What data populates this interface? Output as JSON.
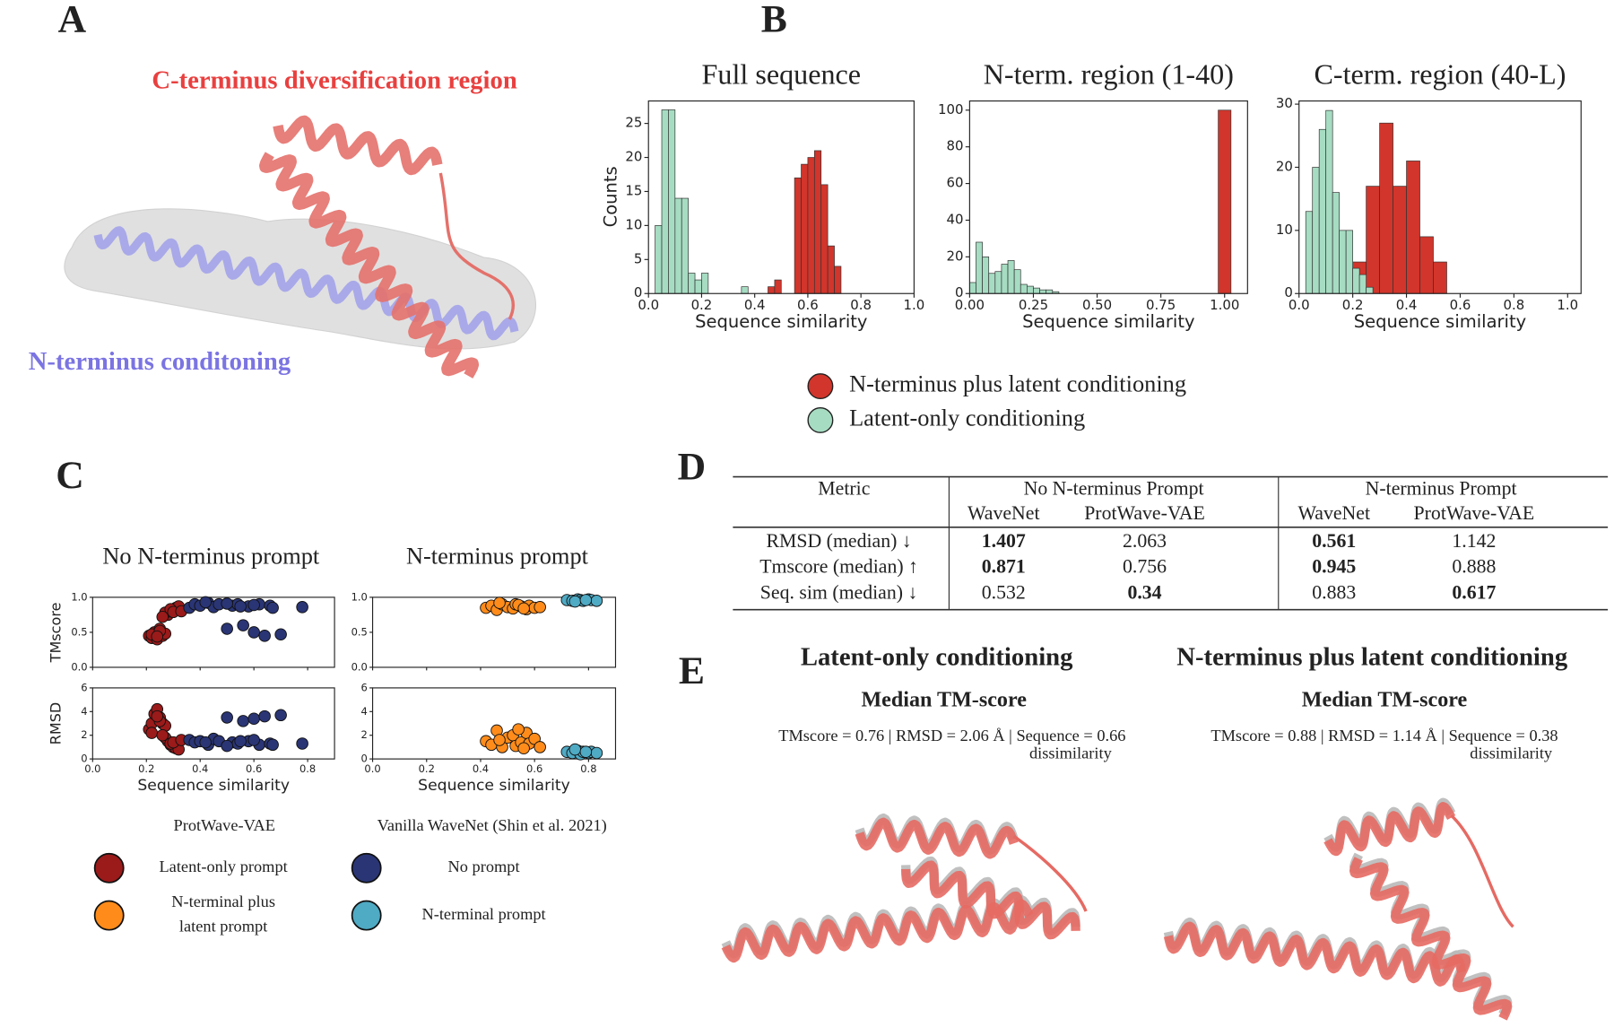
{
  "panel_labels": [
    "A",
    "B",
    "C",
    "D",
    "E"
  ],
  "panel_a": {
    "c_terminus_label": "C-terminus diversification region",
    "n_terminus_label": "N-terminus conditoning"
  },
  "chart_data": [
    {
      "type": "histogram",
      "title": "Full sequence",
      "xlabel": "Sequence similarity",
      "ylabel": "Counts",
      "xlim": [
        0,
        1.0
      ],
      "ylim": [
        0,
        28.3
      ],
      "xticks": [
        {
          "value": 0,
          "label": "0.0"
        },
        {
          "value": 0.2,
          "label": "0.2"
        },
        {
          "value": 0.4,
          "label": "0.4"
        },
        {
          "value": 0.6,
          "label": "0.6"
        },
        {
          "value": 0.8,
          "label": "0.8"
        },
        {
          "value": 1,
          "label": "1.0"
        }
      ],
      "yticks": [
        0,
        5,
        10,
        15,
        20,
        25
      ],
      "series": [
        {
          "color": "#a6dcc2",
          "bins": [
            0.025,
            0.05,
            0.075,
            0.1,
            0.125,
            0.15,
            0.175,
            0.2,
            0.225,
            0.25,
            0.275,
            0.3,
            0.325,
            0.35,
            0.375
          ],
          "values": [
            10,
            27,
            27,
            14,
            14,
            3,
            2,
            3,
            0,
            0,
            0,
            0,
            0,
            1
          ]
        },
        {
          "color": "#d1352b",
          "bins": [
            0.45,
            0.475,
            0.5,
            0.525,
            0.55,
            0.575,
            0.6,
            0.625,
            0.65,
            0.675,
            0.7,
            0.725
          ],
          "values": [
            1,
            2,
            0,
            0,
            17,
            19,
            20,
            21,
            16,
            7,
            4
          ]
        }
      ]
    },
    {
      "type": "histogram",
      "title": "N-term. region (1-40)",
      "xlabel": "Sequence similarity",
      "xlim": [
        0,
        1.09
      ],
      "ylim": [
        0,
        105
      ],
      "xticks": [
        {
          "value": 0,
          "label": "0.00"
        },
        {
          "value": 0.25,
          "label": "0.25"
        },
        {
          "value": 0.5,
          "label": "0.50"
        },
        {
          "value": 0.75,
          "label": "0.75"
        },
        {
          "value": 1,
          "label": "1.00"
        }
      ],
      "yticks": [
        0,
        20,
        40,
        60,
        80,
        100
      ],
      "series": [
        {
          "color": "#a6dcc2",
          "bins": [
            0,
            0.025,
            0.05,
            0.075,
            0.1,
            0.125,
            0.15,
            0.175,
            0.2,
            0.225,
            0.25,
            0.275,
            0.3,
            0.325,
            0.35
          ],
          "values": [
            6,
            28,
            20,
            11,
            12,
            16,
            18,
            13,
            5,
            4,
            3,
            2,
            2,
            1
          ]
        },
        {
          "color": "#d1352b",
          "bins": [
            0.975,
            1.025
          ],
          "values": [
            100
          ]
        }
      ]
    },
    {
      "type": "histogram",
      "title": "C-term. region (40-L)",
      "xlabel": "Sequence similarity",
      "xlim": [
        0,
        1.05
      ],
      "ylim": [
        0,
        30.5
      ],
      "xticks": [
        {
          "value": 0,
          "label": "0.0"
        },
        {
          "value": 0.2,
          "label": "0.2"
        },
        {
          "value": 0.4,
          "label": "0.4"
        },
        {
          "value": 0.6,
          "label": "0.6"
        },
        {
          "value": 0.8,
          "label": "0.8"
        },
        {
          "value": 1,
          "label": "1.0"
        }
      ],
      "yticks": [
        0,
        10,
        20,
        30
      ],
      "series": [
        {
          "color": "#d1352b",
          "bins": [
            0.2,
            0.25,
            0.3,
            0.35,
            0.4,
            0.45,
            0.5,
            0.55
          ],
          "values": [
            5,
            17,
            27,
            17,
            21,
            9,
            5
          ]
        },
        {
          "color": "#a6dcc2",
          "bins": [
            0.025,
            0.05,
            0.075,
            0.1,
            0.125,
            0.15,
            0.175,
            0.2,
            0.225,
            0.25,
            0.275
          ],
          "values": [
            13,
            20,
            26,
            29,
            16,
            10,
            10,
            4,
            3,
            1
          ]
        }
      ]
    },
    {
      "type": "scatter",
      "title": "No N-terminus prompt",
      "xlabel": "Sequence similarity",
      "xlim": [
        0,
        0.9
      ],
      "xticks": [
        {
          "value": 0,
          "label": "0.0"
        },
        {
          "value": 0.2,
          "label": "0.2"
        },
        {
          "value": 0.4,
          "label": "0.4"
        },
        {
          "value": 0.6,
          "label": "0.6"
        },
        {
          "value": 0.8,
          "label": "0.8"
        }
      ],
      "series_x": [
        [
          0.21,
          0.22,
          0.23,
          0.24,
          0.25,
          0.26,
          0.27,
          0.28,
          0.29,
          0.3,
          0.31,
          0.32,
          0.22,
          0.25,
          0.27,
          0.29,
          0.24,
          0.3,
          0.26,
          0.33
        ],
        [
          0.36,
          0.38,
          0.4,
          0.43,
          0.45,
          0.47,
          0.5,
          0.52,
          0.54,
          0.56,
          0.58,
          0.6,
          0.62,
          0.64,
          0.66,
          0.7,
          0.78,
          0.5,
          0.6,
          0.67,
          0.42,
          0.55
        ]
      ],
      "subplots": [
        {
          "ylabel": "TMscore",
          "ylim": [
            0,
            1
          ],
          "yticks": [
            {
              "value": 0,
              "label": "0.0"
            },
            0.5,
            {
              "value": 1,
              "label": "1.0"
            }
          ],
          "series": [
            {
              "color": "#9b1a1a",
              "values": [
                0.45,
                0.42,
                0.5,
                0.4,
                0.55,
                0.45,
                0.48,
                0.75,
                0.8,
                0.82,
                0.85,
                0.87,
                0.47,
                0.52,
                0.78,
                0.83,
                0.44,
                0.79,
                0.72,
                0.8
              ]
            },
            {
              "color": "#2a3575",
              "values": [
                0.85,
                0.9,
                0.88,
                0.92,
                0.86,
                0.9,
                0.55,
                0.88,
                0.9,
                0.6,
                0.87,
                0.5,
                0.9,
                0.45,
                0.88,
                0.47,
                0.86,
                0.91,
                0.89,
                0.85,
                0.93,
                0.87
              ]
            }
          ]
        },
        {
          "ylabel": "RMSD",
          "ylim": [
            0,
            6
          ],
          "yticks": [
            0,
            2,
            4,
            6
          ],
          "series": [
            {
              "color": "#9b1a1a",
              "values": [
                2.5,
                3,
                3.8,
                4.2,
                3.5,
                3,
                2.8,
                1.5,
                1.2,
                1,
                0.9,
                0.8,
                2.2,
                3.2,
                1.8,
                1.3,
                3.6,
                1.4,
                2,
                1.6
              ]
            },
            {
              "color": "#2a3575",
              "values": [
                1.6,
                1.4,
                1.5,
                1.2,
                1.7,
                1.5,
                3.5,
                1.4,
                1.3,
                3.2,
                1.5,
                3.4,
                1.2,
                3.6,
                1.3,
                3.7,
                1.3,
                1.1,
                1.6,
                1.2,
                1.4,
                1.5
              ]
            }
          ]
        }
      ]
    },
    {
      "type": "scatter",
      "title": "N-terminus prompt",
      "xlabel": "Sequence similarity",
      "xlim": [
        0,
        0.9
      ],
      "xticks": [
        {
          "value": 0,
          "label": "0.0"
        },
        {
          "value": 0.2,
          "label": "0.2"
        },
        {
          "value": 0.4,
          "label": "0.4"
        },
        {
          "value": 0.6,
          "label": "0.6"
        },
        {
          "value": 0.8,
          "label": "0.8"
        }
      ],
      "series_x": [
        [
          0.42,
          0.44,
          0.46,
          0.48,
          0.5,
          0.52,
          0.53,
          0.55,
          0.57,
          0.58,
          0.6,
          0.62,
          0.47,
          0.54,
          0.56
        ],
        [
          0.72,
          0.74,
          0.76,
          0.77,
          0.78,
          0.8,
          0.81,
          0.83,
          0.75,
          0.79
        ]
      ],
      "subplots": [
        {
          "ylabel": "",
          "ylim": [
            0,
            1
          ],
          "yticks": [
            {
              "value": 0,
              "label": "0.0"
            },
            0.5,
            {
              "value": 1,
              "label": "1.0"
            }
          ],
          "series": [
            {
              "color": "#ff8c1a",
              "values": [
                0.85,
                0.88,
                0.82,
                0.9,
                0.86,
                0.84,
                0.9,
                0.87,
                0.83,
                0.88,
                0.85,
                0.86,
                0.92,
                0.89,
                0.84
              ]
            },
            {
              "color": "#4faac4",
              "values": [
                0.96,
                0.95,
                0.97,
                0.96,
                0.95,
                0.97,
                0.96,
                0.95,
                0.94,
                0.96
              ]
            }
          ]
        },
        {
          "ylabel": "",
          "ylim": [
            0,
            6
          ],
          "yticks": [
            0,
            2,
            4,
            6
          ],
          "series": [
            {
              "color": "#ff8c1a",
              "values": [
                1.5,
                1.2,
                2.4,
                1.0,
                1.8,
                2.0,
                1.1,
                1.4,
                2.2,
                1.3,
                1.7,
                1.0,
                1.6,
                2.5,
                0.9
              ]
            },
            {
              "color": "#4faac4",
              "values": [
                0.6,
                0.5,
                0.7,
                0.4,
                0.6,
                0.5,
                0.6,
                0.5,
                0.8,
                0.6
              ]
            }
          ]
        }
      ]
    }
  ],
  "legend_b": [
    {
      "name": "N-terminus plus latent conditioning",
      "color": "#d1352b"
    },
    {
      "name": "Latent-only conditioning",
      "color": "#a6dcc2"
    }
  ],
  "legend_c": [
    {
      "title": "ProtWave-VAE",
      "entries": [
        {
          "label_lines": [
            "Latent-only prompt"
          ],
          "color": "#9b1a1a"
        },
        {
          "label_lines": [
            "N-terminal plus",
            "latent prompt"
          ],
          "color": "#ff8c1a"
        }
      ]
    },
    {
      "title": "Vanilla WaveNet (Shin et al. 2021)",
      "entries": [
        {
          "label_lines": [
            "No prompt"
          ],
          "color": "#2a3575"
        },
        {
          "label_lines": [
            "N-terminal prompt"
          ],
          "color": "#4faac4"
        }
      ]
    }
  ],
  "table": {
    "metric_header": "Metric",
    "groups": [
      "No N-terminus Prompt",
      "N-terminus Prompt"
    ],
    "subheaders": [
      "WaveNet",
      "ProtWave-VAE",
      "WaveNet",
      "ProtWave-VAE"
    ],
    "rows": [
      {
        "metric": "RMSD (median) ↓",
        "values": [
          1.407,
          2.063,
          0.561,
          1.142
        ],
        "bold": [
          0,
          2
        ]
      },
      {
        "metric": "Tmscore (median) ↑",
        "values": [
          0.871,
          0.756,
          0.945,
          0.888
        ],
        "bold": [
          0,
          2
        ]
      },
      {
        "metric": "Seq. sim (median) ↓",
        "values": [
          0.532,
          0.34,
          0.883,
          0.617
        ],
        "bold": [
          1,
          3
        ]
      }
    ]
  },
  "panel_e": [
    {
      "title": "Latent-only conditioning",
      "subtitle": "Median TM-score",
      "caption": "TMscore = 0.76 | RMSD = 2.06 Å | Sequence  = 0.66",
      "caption_2": "dissimilarity"
    },
    {
      "title": "N-terminus plus latent conditioning",
      "subtitle": "Median TM-score",
      "caption": "TMscore = 0.88 | RMSD = 1.14 Å | Sequence  = 0.38",
      "caption_2": "dissimilarity"
    }
  ]
}
